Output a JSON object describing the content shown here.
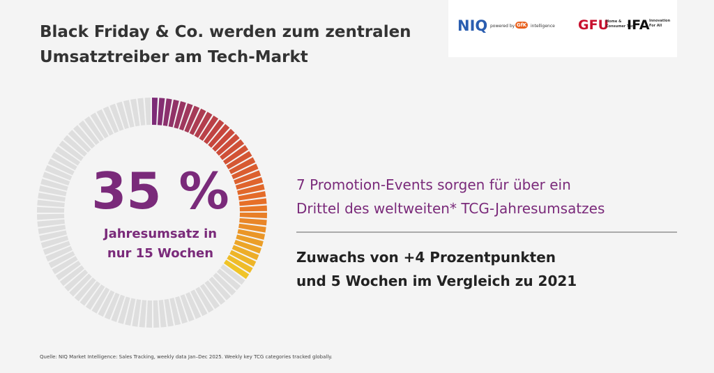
{
  "title": {
    "lines": [
      "Black Friday & Co. werden zum zentralen",
      "Umsatztreiber am Tech-Markt"
    ]
  },
  "logos": {
    "niq": "NIQ",
    "niq_sub": "powered by",
    "gfk": "GfK",
    "gfk_sub": "intelligence",
    "gfu": "GFU",
    "gfu_sub": [
      "Home &",
      "Consumer Tech"
    ],
    "ifa": "IFA",
    "ifa_sub": [
      "Innovation",
      "For All"
    ]
  },
  "gauge": {
    "value": 35,
    "value_label": "35 %",
    "caption": [
      "Jahresumsatz in",
      "nur 15 Wochen"
    ]
  },
  "statements": [
    {
      "lines": [
        "7 Promotion-Events sorgen für über ein",
        "Drittel des weltweiten* TCG-Jahresumsatzes"
      ]
    },
    {
      "lines": [
        "Zuwachs von +4 Prozentpunkten",
        "und 5 Wochen im Vergleich zu 2021"
      ]
    }
  ],
  "source": "Quelle: NIQ Market Intelligence: Sales Tracking, weekly data Jan–Dec 2025. Weekly key TCG categories tracked globally."
}
